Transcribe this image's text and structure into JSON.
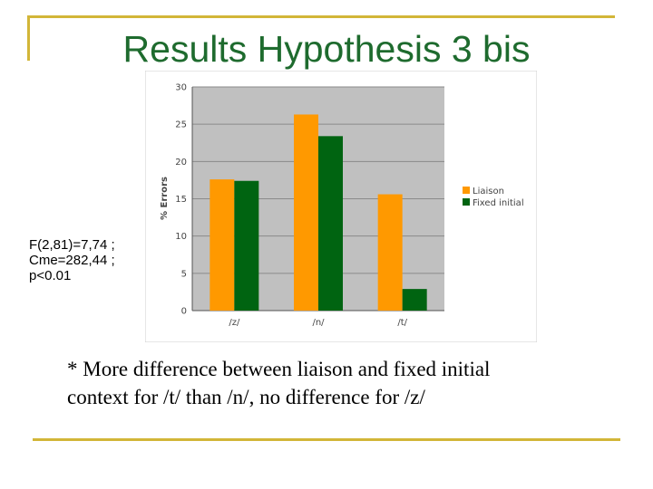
{
  "slide": {
    "title": "Results Hypothesis 3 bis",
    "stats": [
      "F(2,81)=7,74 ;",
      "Cme=282,44 ;",
      "p<0.01"
    ],
    "note_line1": "* More difference between liaison and fixed initial",
    "note_line2": "context for /t/ than /n/, no difference for /z/"
  },
  "colors": {
    "accent_rule": "#d2b638",
    "title": "#1e6b2e",
    "plot_bg": "#c0c0c0"
  },
  "chart_data": {
    "type": "bar",
    "categories": [
      "/z/",
      "/n/",
      "/t/"
    ],
    "series": [
      {
        "name": "Liaison",
        "color": "#ff9900",
        "values": [
          17.6,
          26.3,
          15.6
        ]
      },
      {
        "name": "Fixed initial",
        "color": "#006411",
        "values": [
          17.4,
          23.4,
          2.9
        ]
      }
    ],
    "ylabel": "% Errors",
    "ylim": [
      0,
      30
    ],
    "yticks": [
      0,
      5,
      10,
      15,
      20,
      25,
      30
    ],
    "grid": true,
    "legend": "right"
  }
}
